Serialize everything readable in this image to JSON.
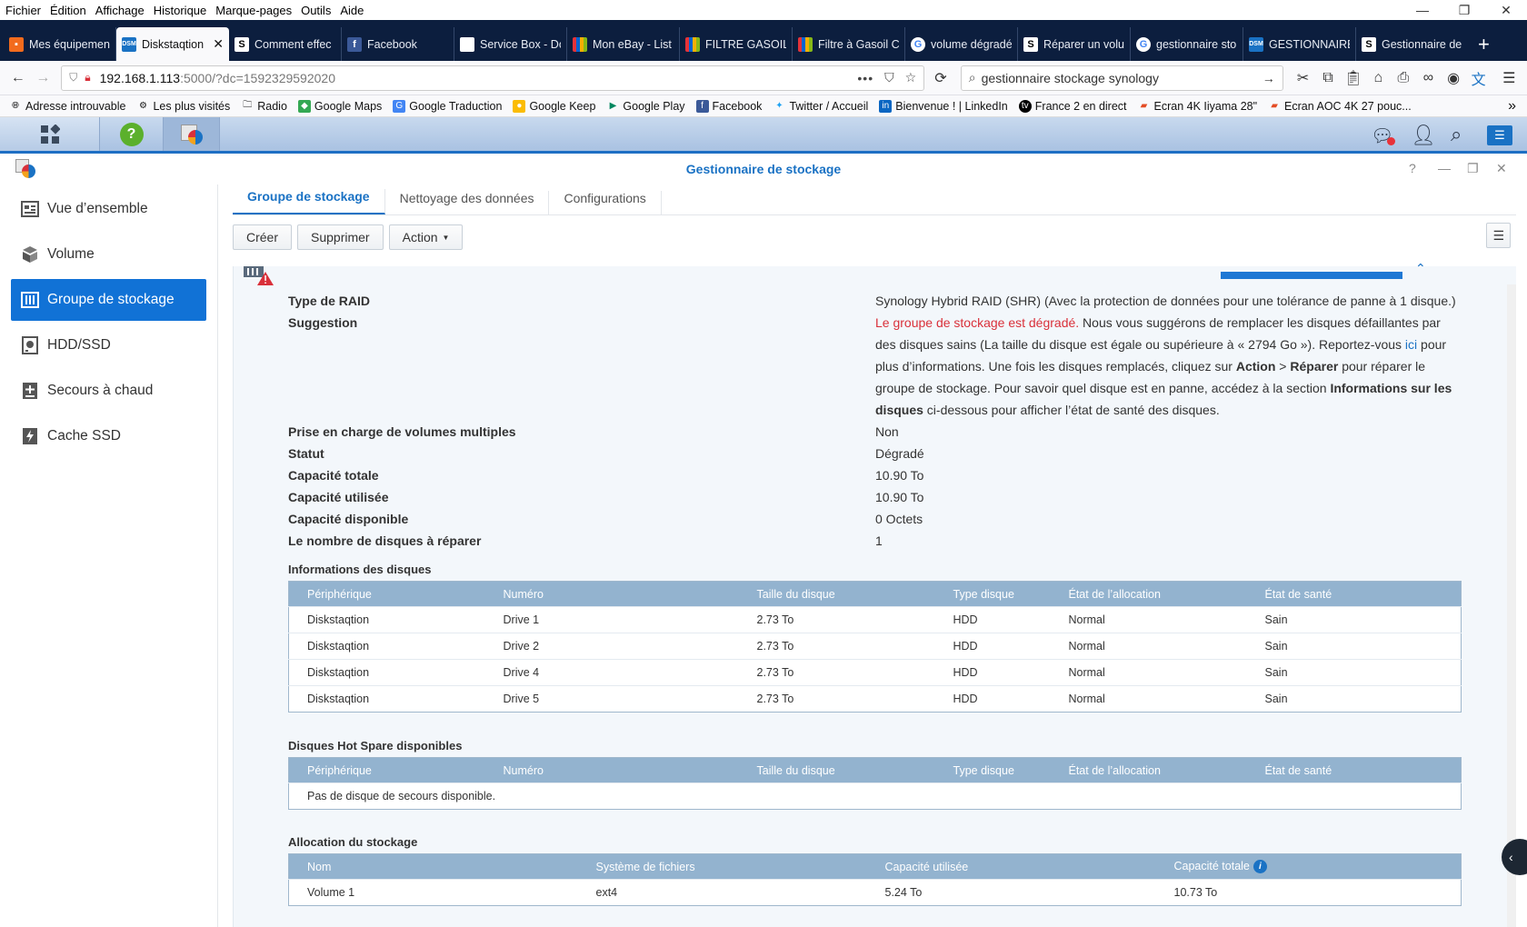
{
  "menubar": {
    "items": [
      "Fichier",
      "Édition",
      "Affichage",
      "Historique",
      "Marque-pages",
      "Outils",
      "Aide"
    ]
  },
  "browser_tabs": [
    {
      "label": "Mes équipemen",
      "favicon": "orange-tab-icon",
      "active": false
    },
    {
      "label": "Diskstaqtion",
      "favicon": "dsm-tab-icon",
      "active": true
    },
    {
      "label": "Comment effec",
      "favicon": "s-tab-icon",
      "active": false
    },
    {
      "label": "Facebook",
      "favicon": "facebook-tab-icon",
      "active": false
    },
    {
      "label": "Service Box - Dc",
      "favicon": "doc-tab-icon",
      "active": false
    },
    {
      "label": "Mon eBay - List",
      "favicon": "ebay-tab-icon",
      "active": false
    },
    {
      "label": "FILTRE GASOIL",
      "favicon": "ebay-tab-icon",
      "active": false
    },
    {
      "label": "Filtre à Gasoil C",
      "favicon": "ebay-tab-icon",
      "active": false
    },
    {
      "label": "volume dégradé",
      "favicon": "google-tab-icon",
      "active": false
    },
    {
      "label": "Réparer un volu",
      "favicon": "s-tab-icon",
      "active": false
    },
    {
      "label": "gestionnaire sto",
      "favicon": "google-tab-icon",
      "active": false
    },
    {
      "label": "GESTIONNAIRE",
      "favicon": "dsm-tab-icon",
      "active": false
    },
    {
      "label": "Gestionnaire de",
      "favicon": "s-tab-icon",
      "active": false
    }
  ],
  "navbar": {
    "url_host": "192.168.1.113",
    "url_path": ":5000/?dc=1592329592020",
    "search_value": "gestionnaire stockage synology"
  },
  "bookmarks": [
    {
      "label": "Adresse introuvable",
      "icon": "globe-icon"
    },
    {
      "label": "Les plus visités",
      "icon": "gear-icon"
    },
    {
      "label": "Radio",
      "icon": "folder-icon"
    },
    {
      "label": "Google Maps",
      "icon": "maps-icon"
    },
    {
      "label": "Google Traduction",
      "icon": "translate-icon"
    },
    {
      "label": "Google Keep",
      "icon": "keep-icon"
    },
    {
      "label": "Google Play",
      "icon": "play-icon"
    },
    {
      "label": "Facebook",
      "icon": "facebook-icon"
    },
    {
      "label": "Twitter / Accueil",
      "icon": "twitter-icon"
    },
    {
      "label": "Bienvenue ! | LinkedIn",
      "icon": "linkedin-icon"
    },
    {
      "label": "France 2 en direct",
      "icon": "tv-icon"
    },
    {
      "label": "Ecran 4K Iiyama 28\"",
      "icon": "shop-icon"
    },
    {
      "label": "Ecran AOC 4K 27 pouc...",
      "icon": "shop-icon"
    }
  ],
  "app": {
    "title": "Gestionnaire de stockage",
    "sidebar": [
      {
        "label": "Vue d’ensemble",
        "icon": "overview-icon",
        "active": false
      },
      {
        "label": "Volume",
        "icon": "volume-icon",
        "active": false
      },
      {
        "label": "Groupe de stockage",
        "icon": "storage-pool-icon",
        "active": true
      },
      {
        "label": "HDD/SSD",
        "icon": "hdd-icon",
        "active": false
      },
      {
        "label": "Secours à chaud",
        "icon": "hot-spare-icon",
        "active": false
      },
      {
        "label": "Cache SSD",
        "icon": "ssd-cache-icon",
        "active": false
      }
    ],
    "tabs": [
      "Groupe de stockage",
      "Nettoyage des données",
      "Configurations"
    ],
    "toolbar": {
      "create": "Créer",
      "delete": "Supprimer",
      "action": "Action"
    },
    "details": {
      "raid_type_label": "Type de RAID",
      "raid_type_value": "Synology Hybrid RAID (SHR) (Avec la protection de données pour une tolérance de panne à 1 disque.)",
      "suggestion_label": "Suggestion",
      "suggestion_red": "Le groupe de stockage est dégradé.",
      "suggestion_p1": " Nous vous suggérons de remplacer les disques défaillantes par des disques sains (La taille du disque est égale ou supérieure à « 2794 Go »). Reportez-vous ",
      "suggestion_link": "ici",
      "suggestion_p2": " pour plus d’informations. Une fois les disques remplacés, cliquez sur ",
      "suggestion_b1": "Action",
      "suggestion_gt": " > ",
      "suggestion_b2": "Réparer",
      "suggestion_p3": " pour réparer le groupe de stockage. Pour savoir quel disque est en panne, accédez à la section ",
      "suggestion_b3": "Informations sur les disques",
      "suggestion_p4": " ci-dessous pour afficher l’état de santé des disques.",
      "multi_label": "Prise en charge de volumes multiples",
      "multi_value": "Non",
      "status_label": "Statut",
      "status_value": "Dégradé",
      "total_label": "Capacité totale",
      "total_value": "10.90 To",
      "used_label": "Capacité utilisée",
      "used_value": "10.90 To",
      "avail_label": "Capacité disponible",
      "avail_value": "0 Octets",
      "repair_label": "Le nombre de disques à réparer",
      "repair_value": "1"
    },
    "disk_info": {
      "title": "Informations des disques",
      "headers": [
        "Périphérique",
        "Numéro",
        "Taille du disque",
        "Type disque",
        "État de l’allocation",
        "État de santé"
      ],
      "rows": [
        [
          "Diskstaqtion",
          "Drive 1",
          "2.73 To",
          "HDD",
          "Normal",
          "Sain"
        ],
        [
          "Diskstaqtion",
          "Drive 2",
          "2.73 To",
          "HDD",
          "Normal",
          "Sain"
        ],
        [
          "Diskstaqtion",
          "Drive 4",
          "2.73 To",
          "HDD",
          "Normal",
          "Sain"
        ],
        [
          "Diskstaqtion",
          "Drive 5",
          "2.73 To",
          "HDD",
          "Normal",
          "Sain"
        ]
      ]
    },
    "hot_spare": {
      "title": "Disques Hot Spare disponibles",
      "headers": [
        "Périphérique",
        "Numéro",
        "Taille du disque",
        "Type disque",
        "État de l’allocation",
        "État de santé"
      ],
      "empty": "Pas de disque de secours disponible."
    },
    "allocation": {
      "title": "Allocation du stockage",
      "headers": [
        "Nom",
        "Système de fichiers",
        "Capacité utilisée",
        "Capacité totale"
      ],
      "rows": [
        [
          "Volume 1",
          "ext4",
          "5.24 To",
          "10.73 To"
        ]
      ]
    }
  }
}
